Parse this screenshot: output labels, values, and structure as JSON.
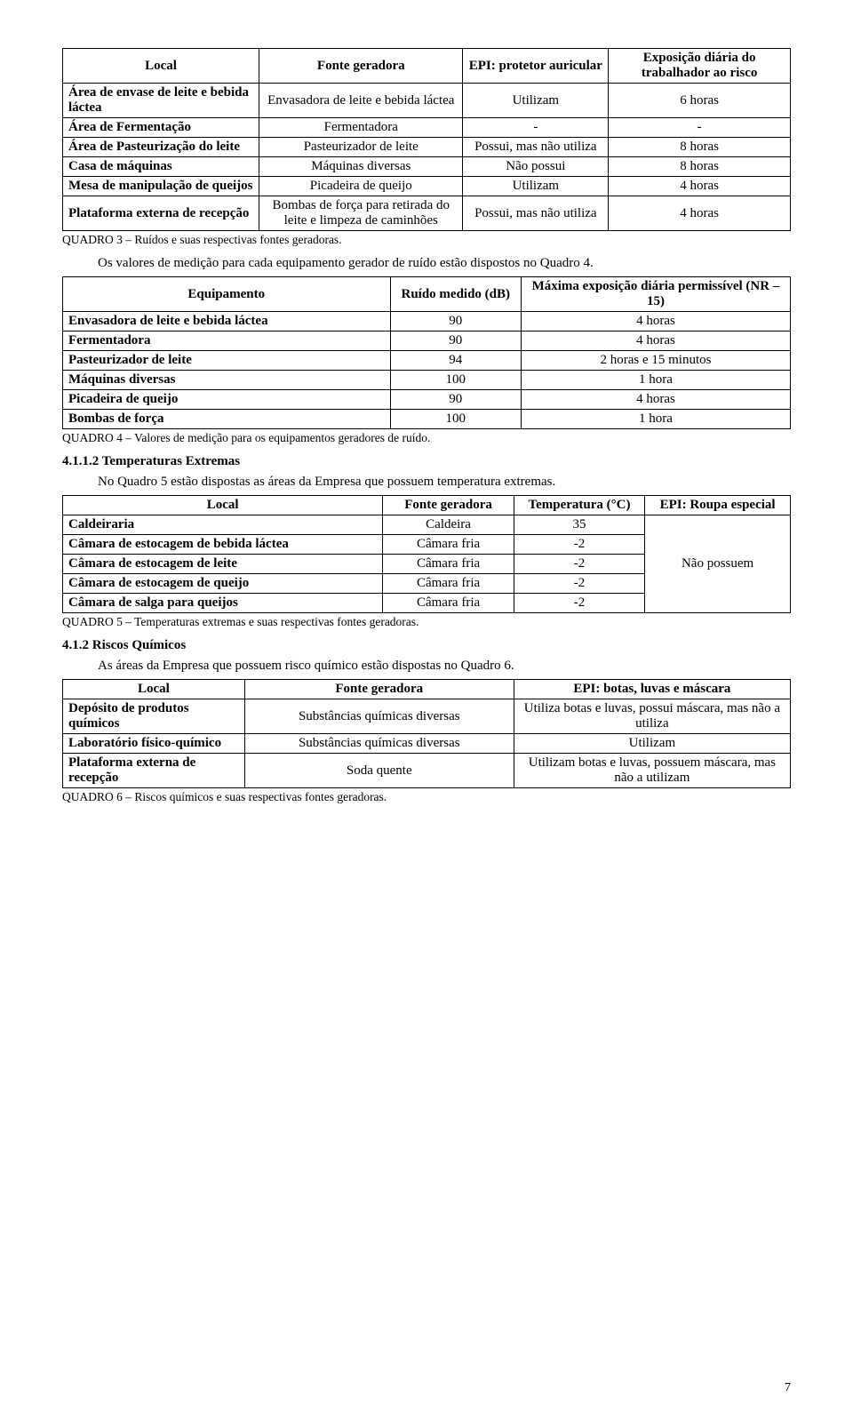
{
  "table3": {
    "headers": [
      "Local",
      "Fonte geradora",
      "EPI: protetor auricular",
      "Exposição diária do trabalhador ao risco"
    ],
    "rows": [
      [
        "Área de envase de leite e bebida láctea",
        "Envasadora de leite e bebida láctea",
        "Utilizam",
        "6 horas"
      ],
      [
        "Área de Fermentação",
        "Fermentadora",
        "-",
        "-"
      ],
      [
        "Área de Pasteurização do leite",
        "Pasteurizador de leite",
        "Possui, mas não utiliza",
        "8 horas"
      ],
      [
        "Casa de máquinas",
        "Máquinas diversas",
        "Não possui",
        "8 horas"
      ],
      [
        "Mesa de manipulação de queijos",
        "Picadeira de queijo",
        "Utilizam",
        "4 horas"
      ],
      [
        "Plataforma externa de recepção",
        "Bombas de força para retirada do leite e limpeza de caminhões",
        "Possui, mas não utiliza",
        "4 horas"
      ]
    ],
    "caption": "QUADRO 3 – Ruídos e suas respectivas fontes geradoras."
  },
  "para1": "Os valores de medição para cada equipamento gerador de ruído estão dispostos no Quadro 4.",
  "table4": {
    "headers": [
      "Equipamento",
      "Ruído medido (dB)",
      "Máxima exposição diária permissível (NR – 15)"
    ],
    "rows": [
      [
        "Envasadora de leite e bebida láctea",
        "90",
        "4 horas"
      ],
      [
        "Fermentadora",
        "90",
        "4 horas"
      ],
      [
        "Pasteurizador de leite",
        "94",
        "2 horas e 15 minutos"
      ],
      [
        "Máquinas diversas",
        "100",
        "1 hora"
      ],
      [
        "Picadeira de queijo",
        "90",
        "4 horas"
      ],
      [
        "Bombas de força",
        "100",
        "1 hora"
      ]
    ],
    "caption": "QUADRO 4 – Valores de medição para os equipamentos geradores de ruído."
  },
  "h_temp": "4.1.1.2 Temperaturas Extremas",
  "para2": "No Quadro 5 estão dispostas as áreas da Empresa que possuem temperatura extremas.",
  "table5": {
    "headers": [
      "Local",
      "Fonte geradora",
      "Temperatura (°C)",
      "EPI: Roupa especial"
    ],
    "rows": [
      [
        "Caldeiraria",
        "Caldeira",
        "35"
      ],
      [
        "Câmara de estocagem de bebida láctea",
        "Câmara fria",
        "-2"
      ],
      [
        "Câmara de estocagem de leite",
        "Câmara fria",
        "-2"
      ],
      [
        "Câmara de estocagem de queijo",
        "Câmara fria",
        "-2"
      ],
      [
        "Câmara de salga para queijos",
        "Câmara fria",
        "-2"
      ]
    ],
    "merged": "Não possuem",
    "caption": "QUADRO 5 – Temperaturas extremas e suas respectivas fontes geradoras."
  },
  "h_quim": "4.1.2 Riscos Químicos",
  "para3": "As áreas da Empresa que possuem risco químico estão dispostas no Quadro 6.",
  "table6": {
    "headers": [
      "Local",
      "Fonte geradora",
      "EPI: botas, luvas e máscara"
    ],
    "rows": [
      [
        "Depósito de produtos químicos",
        "Substâncias químicas diversas",
        "Utiliza botas e luvas, possui máscara, mas não a utiliza"
      ],
      [
        "Laboratório físico-químico",
        "Substâncias químicas diversas",
        "Utilizam"
      ],
      [
        "Plataforma externa de recepção",
        "Soda quente",
        "Utilizam botas e luvas, possuem máscara, mas não a utilizam"
      ]
    ],
    "caption": "QUADRO 6 – Riscos químicos e suas respectivas fontes geradoras."
  },
  "pagenum": "7",
  "widths": {
    "t3": [
      "27%",
      "28%",
      "20%",
      "25%"
    ],
    "t4": [
      "45%",
      "18%",
      "37%"
    ],
    "t5": [
      "44%",
      "18%",
      "18%",
      "20%"
    ],
    "t6": [
      "25%",
      "37%",
      "38%"
    ]
  }
}
